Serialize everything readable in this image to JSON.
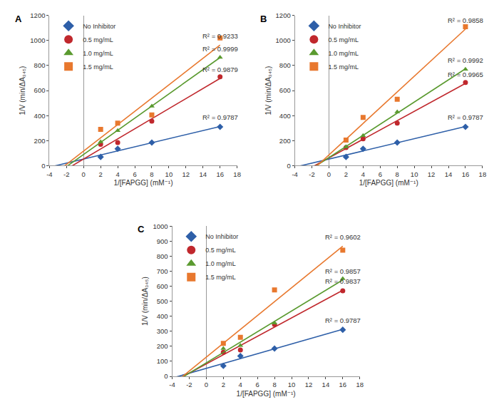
{
  "chart_data": [
    {
      "type": "scatter",
      "title": "A",
      "x_label": "1/[FAPGG] (mM⁻¹)",
      "y_label": "1/V (min/ΔA₃₄₅)",
      "x": [
        2,
        4,
        8,
        16
      ],
      "xlim": [
        -4,
        18
      ],
      "xticks": [
        -4,
        -2,
        0,
        2,
        4,
        6,
        8,
        10,
        12,
        14,
        16,
        18
      ],
      "ylim": [
        0,
        1200
      ],
      "yticks": [
        0,
        200,
        400,
        600,
        800,
        1000,
        1200
      ],
      "grid": false,
      "legend": "upper left",
      "series": [
        {
          "name": "No Inhibitor",
          "color": "#2e5fa8",
          "marker": "diamond",
          "line_style": "solid",
          "values": [
            70,
            135,
            185,
            310
          ],
          "annotation": "R² = 0.9787"
        },
        {
          "name": "0.5 mg/mL",
          "color": "#c0282d",
          "marker": "circle",
          "line_style": "solid",
          "values": [
            170,
            185,
            355,
            710
          ],
          "annotation": "R² = 0.9879"
        },
        {
          "name": "1.0 mg/mL",
          "color": "#5a9a2f",
          "marker": "triangle",
          "line_style": "solid",
          "values": [
            190,
            280,
            475,
            865
          ],
          "annotation": "R² = 0.9999"
        },
        {
          "name": "1.5 mg/mL",
          "color": "#e8782e",
          "marker": "square",
          "line_style": "solid",
          "values": [
            290,
            340,
            405,
            1020
          ],
          "annotation": "R² = 0.9233"
        }
      ]
    },
    {
      "type": "scatter",
      "title": "B",
      "x_label": "1/[FAPGG] (mM⁻¹)",
      "y_label": "1/V (min/ΔA₃₄₅)",
      "x": [
        2,
        4,
        8,
        16
      ],
      "xlim": [
        -4,
        18
      ],
      "xticks": [
        -4,
        -2,
        0,
        2,
        4,
        6,
        8,
        10,
        12,
        14,
        16,
        18
      ],
      "ylim": [
        0,
        1200
      ],
      "yticks": [
        0,
        200,
        400,
        600,
        800,
        1000,
        1200
      ],
      "grid": false,
      "legend": "upper left",
      "series": [
        {
          "name": "No Inhibitor",
          "color": "#2e5fa8",
          "marker": "diamond",
          "line_style": "solid",
          "values": [
            70,
            135,
            185,
            310
          ],
          "annotation": "R² = 0.9787"
        },
        {
          "name": "0.5 mg/mL",
          "color": "#c0282d",
          "marker": "circle",
          "line_style": "solid",
          "values": [
            145,
            215,
            340,
            665
          ],
          "annotation": "R² = 0.9965"
        },
        {
          "name": "1.0 mg/mL",
          "color": "#5a9a2f",
          "marker": "triangle",
          "line_style": "solid",
          "values": [
            150,
            240,
            430,
            770
          ],
          "annotation": "R² = 0.9992"
        },
        {
          "name": "1.5 mg/mL",
          "color": "#e8782e",
          "marker": "square",
          "line_style": "solid",
          "values": [
            205,
            385,
            530,
            1110
          ],
          "annotation": "R² = 0.9858"
        }
      ]
    },
    {
      "type": "scatter",
      "title": "C",
      "x_label": "1/[FAPGG] (mM⁻¹)",
      "y_label": "1/V (min/ΔA₃₄₅)",
      "x": [
        2,
        4,
        8,
        16
      ],
      "xlim": [
        -4,
        18
      ],
      "xticks": [
        -4,
        -2,
        0,
        2,
        4,
        6,
        8,
        10,
        12,
        14,
        16,
        18
      ],
      "ylim": [
        0,
        1000
      ],
      "yticks": [
        0,
        100,
        200,
        300,
        400,
        500,
        600,
        700,
        800,
        900,
        1000
      ],
      "grid": false,
      "legend": "upper left",
      "series": [
        {
          "name": "No Inhibitor",
          "color": "#2e5fa8",
          "marker": "diamond",
          "line_style": "solid",
          "values": [
            70,
            135,
            185,
            310
          ],
          "annotation": "R² = 0.9787"
        },
        {
          "name": "0.5 mg/mL",
          "color": "#c0282d",
          "marker": "circle",
          "line_style": "solid",
          "values": [
            160,
            175,
            345,
            570
          ],
          "annotation": "R² = 0.9837"
        },
        {
          "name": "1.0 mg/mL",
          "color": "#5a9a2f",
          "marker": "triangle",
          "line_style": "solid",
          "values": [
            185,
            205,
            355,
            650
          ],
          "annotation": "R² = 0.9857"
        },
        {
          "name": "1.5 mg/mL",
          "color": "#e8782e",
          "marker": "square",
          "line_style": "solid",
          "values": [
            220,
            260,
            575,
            840
          ],
          "annotation": "R² = 0.9602"
        }
      ]
    }
  ]
}
